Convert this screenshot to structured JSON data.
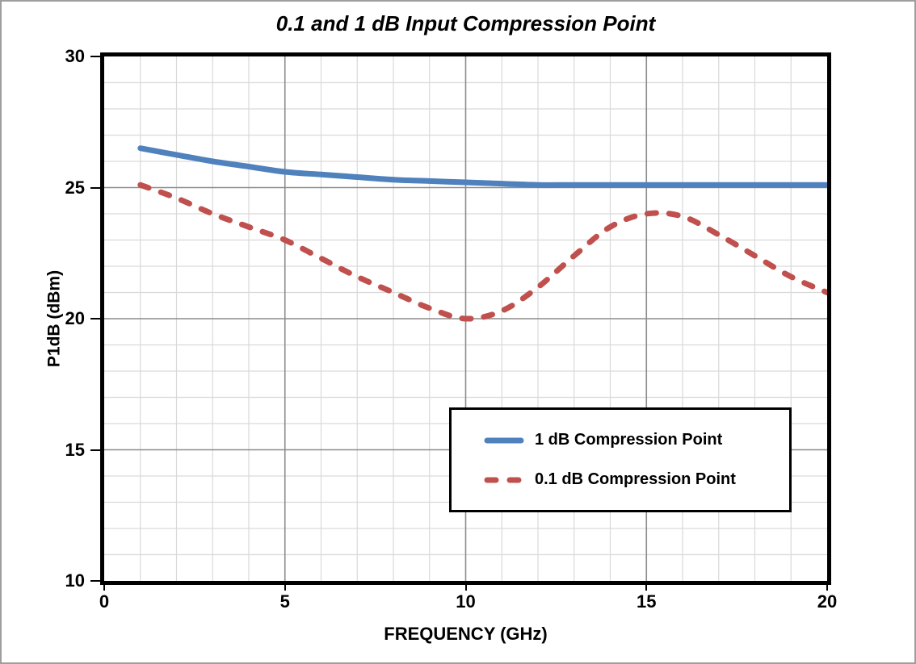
{
  "frame": {
    "background": "#ffffff",
    "border_color": "#9e9e9e"
  },
  "chart_data": {
    "type": "line",
    "title": "0.1 and 1 dB Input Compression Point",
    "xlabel": "FREQUENCY (GHz)",
    "ylabel": "P1dB (dBm)",
    "xlim": [
      0,
      20
    ],
    "ylim": [
      10,
      30
    ],
    "x_ticks": [
      0,
      5,
      10,
      15,
      20
    ],
    "y_ticks": [
      30,
      25,
      20,
      15,
      10
    ],
    "grid": {
      "on": true,
      "minor_step": 1,
      "major_step": 5,
      "minor_color": "#d9d9d9",
      "major_color": "#8c8c8c"
    },
    "plot_border_color": "#000000",
    "legend": {
      "position": "inside-center-right",
      "border_color": "#000000",
      "background": "#ffffff"
    },
    "x": [
      1,
      2,
      3,
      4,
      5,
      6,
      7,
      8,
      9,
      10,
      11,
      12,
      13,
      14,
      15,
      16,
      17,
      18,
      19,
      20
    ],
    "series": [
      {
        "name": "1 dB Compression Point",
        "color": "#4F81BD",
        "line_style": "solid",
        "values": [
          26.5,
          26.25,
          26.0,
          25.8,
          25.6,
          25.5,
          25.4,
          25.3,
          25.25,
          25.2,
          25.15,
          25.1,
          25.1,
          25.1,
          25.1,
          25.1,
          25.1,
          25.1,
          25.1,
          25.1
        ]
      },
      {
        "name": "0.1 dB Compression Point",
        "color": "#C0504D",
        "line_style": "dashed",
        "values": [
          25.1,
          24.6,
          24.0,
          23.5,
          23.0,
          22.3,
          21.6,
          21.0,
          20.4,
          20.0,
          20.3,
          21.2,
          22.4,
          23.5,
          24.0,
          23.9,
          23.2,
          22.4,
          21.6,
          21.0
        ]
      }
    ]
  }
}
